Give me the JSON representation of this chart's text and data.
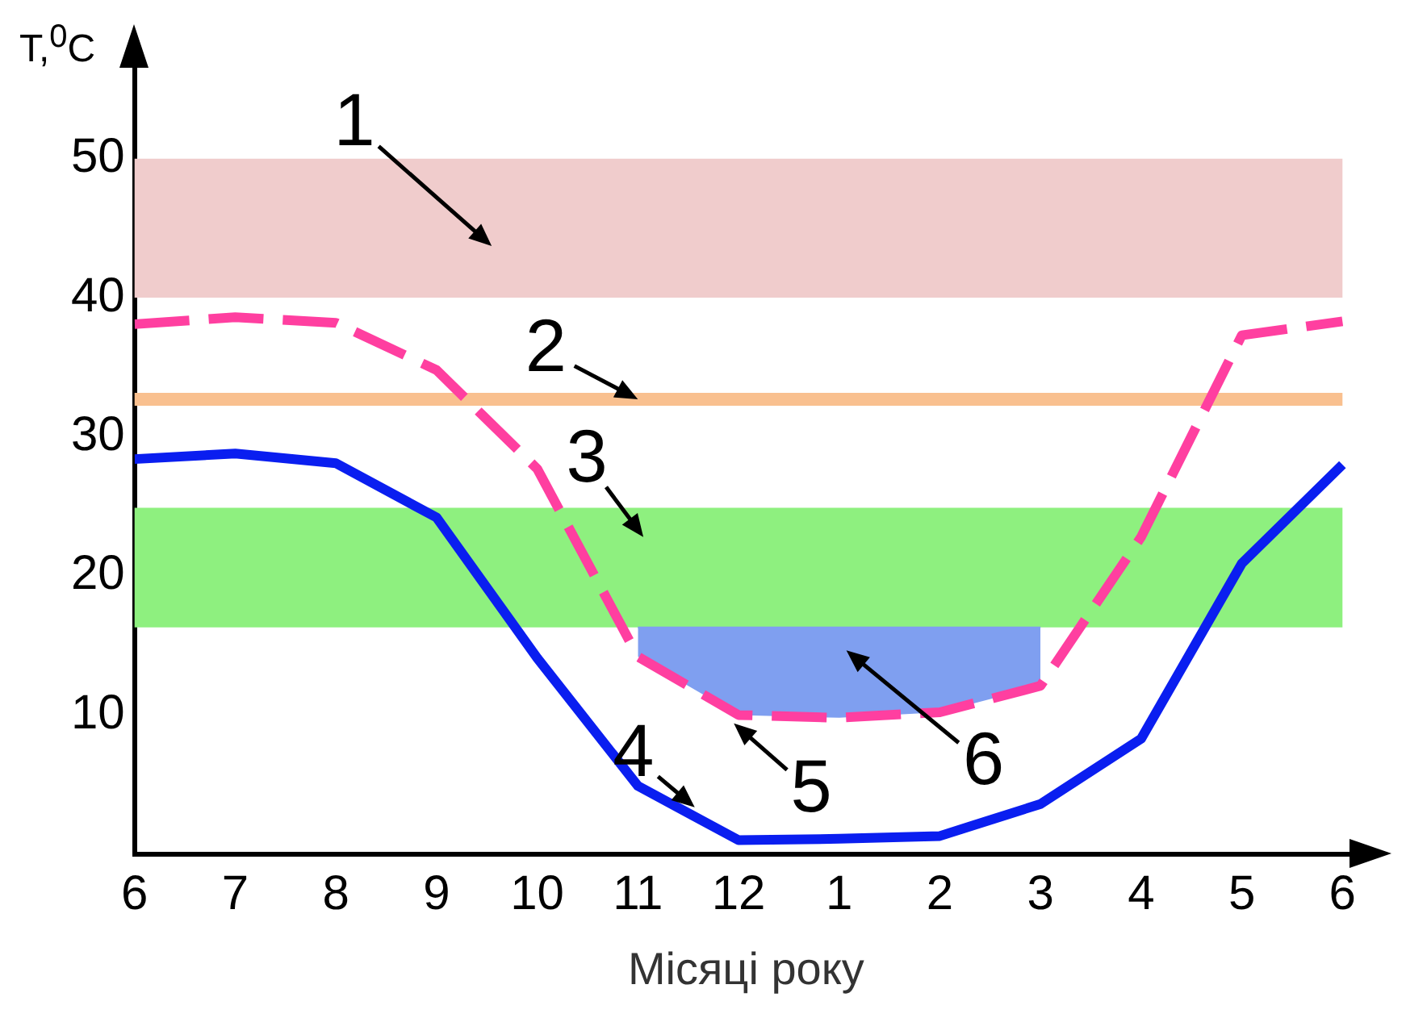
{
  "chart_data": {
    "type": "line",
    "xlabel": "Місяці року",
    "ylabel": "T,$^{0}$C",
    "categories": [
      "6",
      "7",
      "8",
      "9",
      "10",
      "11",
      "12",
      "1",
      "2",
      "3",
      "4",
      "5",
      "6"
    ],
    "ylim": [
      0,
      57
    ],
    "yticks": [
      10,
      20,
      30,
      40,
      50
    ],
    "grid": false,
    "marker": "none",
    "bands": [
      {
        "axis": "y",
        "from": 40,
        "to": 50,
        "color": "#f0cccc",
        "label": "1"
      },
      {
        "axis": "y",
        "from": 16.3,
        "to": 24.9,
        "color": "#8ef07f",
        "label": "3"
      }
    ],
    "ref_lines": [
      {
        "axis": "y",
        "value": 32.7,
        "color": "#f9c08f"
      }
    ],
    "annotations": [
      {
        "text": "2",
        "x": "11",
        "y": 32.7
      }
    ],
    "series": [
      {
        "type": "area",
        "name": "6",
        "color": "#7f9ff0",
        "values": [
          null,
          null,
          null,
          null,
          null,
          16.3,
          16.3,
          16.3,
          16.3,
          16.3,
          null,
          null,
          null
        ]
      },
      {
        "name": "5",
        "color": "#ff3fa0",
        "line_style": "dashed",
        "values": [
          38.1,
          38.6,
          38.2,
          34.8,
          27.7,
          14.2,
          10,
          9.8,
          10.2,
          12.1,
          22.8,
          37.3,
          38.3
        ]
      },
      {
        "name": "4",
        "color": "#0a1ef0",
        "line_style": "solid",
        "values": [
          28.4,
          28.8,
          28.1,
          24.2,
          14.1,
          4.9,
          1.0,
          1.1,
          1.3,
          3.6,
          8.3,
          20.9,
          28.0
        ]
      }
    ]
  }
}
